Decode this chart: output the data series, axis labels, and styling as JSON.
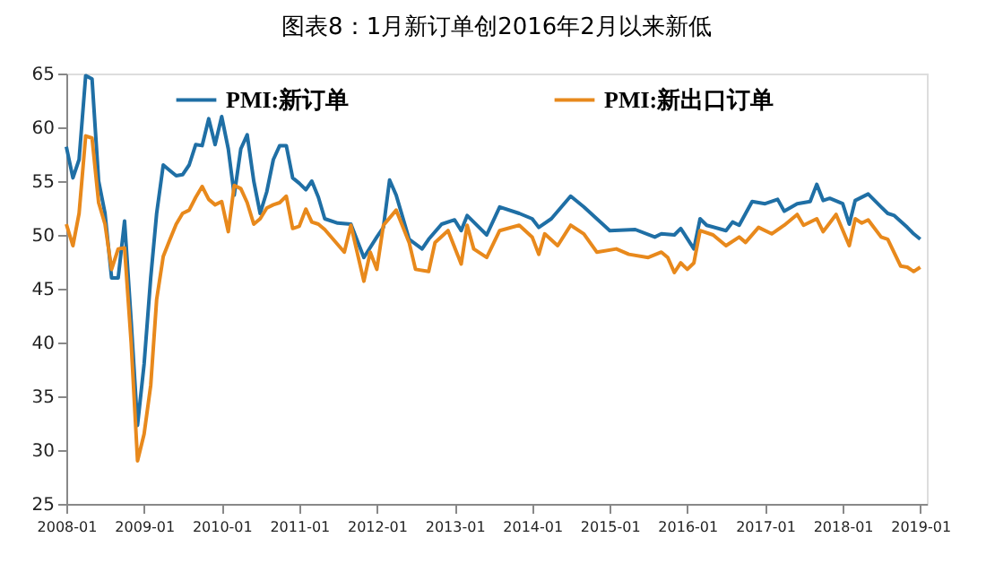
{
  "chart_data": {
    "type": "line",
    "title": "图表8：1月新订单创2016年2月以来新低",
    "xlim": [
      "2008-01",
      "2019-02"
    ],
    "ylim": [
      25,
      65
    ],
    "yticks": [
      25,
      30,
      35,
      40,
      45,
      50,
      55,
      60,
      65
    ],
    "xticks": [
      "2008-01",
      "2009-01",
      "2010-01",
      "2011-01",
      "2012-01",
      "2013-01",
      "2014-01",
      "2015-01",
      "2016-01",
      "2017-01",
      "2018-01",
      "2019-01"
    ],
    "grid": false,
    "legend": "top",
    "marker": "none",
    "line_style": "solid",
    "series": [
      {
        "name": "PMI:新订单",
        "color": "#1f6fa5",
        "x": [
          "2008-01",
          "2008-02",
          "2008-03",
          "2008-04",
          "2008-05",
          "2008-06",
          "2008-07",
          "2008-08",
          "2008-09",
          "2008-10",
          "2008-11",
          "2008-12",
          "2009-01",
          "2009-02",
          "2009-03",
          "2009-04",
          "2009-05",
          "2009-06",
          "2009-07",
          "2009-08",
          "2009-09",
          "2009-10",
          "2009-11",
          "2009-12",
          "2010-01",
          "2010-02",
          "2010-03",
          "2010-04",
          "2010-05",
          "2010-06",
          "2010-07",
          "2010-08",
          "2010-09",
          "2010-10",
          "2010-11",
          "2010-12",
          "2011-01",
          "2011-02",
          "2011-03",
          "2011-04",
          "2011-05",
          "2011-07",
          "2011-09",
          "2011-11",
          "2012-01",
          "2012-02",
          "2012-03",
          "2012-04",
          "2012-06",
          "2012-08",
          "2012-09",
          "2012-11",
          "2013-01",
          "2013-02",
          "2013-03",
          "2013-06",
          "2013-08",
          "2013-11",
          "2014-01",
          "2014-02",
          "2014-04",
          "2014-07",
          "2014-09",
          "2014-11",
          "2015-01",
          "2015-05",
          "2015-08",
          "2015-09",
          "2015-11",
          "2015-12",
          "2016-02",
          "2016-03",
          "2016-04",
          "2016-07",
          "2016-08",
          "2016-09",
          "2016-11",
          "2017-01",
          "2017-03",
          "2017-04",
          "2017-06",
          "2017-08",
          "2017-09",
          "2017-10",
          "2017-11",
          "2018-01",
          "2018-02",
          "2018-03",
          "2018-05",
          "2018-07",
          "2018-08",
          "2018-09",
          "2018-11",
          "2018-12",
          "2019-01"
        ],
        "values": [
          58.2,
          55.3,
          57,
          64.8,
          64.5,
          55,
          52,
          46,
          46,
          51.3,
          42,
          32.3,
          38,
          46,
          52,
          56.5,
          56,
          55.5,
          55.6,
          56.5,
          58.4,
          58.3,
          60.8,
          58.4,
          61,
          58,
          53.7,
          58,
          59.3,
          55,
          52,
          54,
          57,
          58.3,
          58.3,
          55.3,
          54.8,
          54.2,
          55,
          53.5,
          51.5,
          51.1,
          51,
          47.9,
          49.8,
          50.7,
          55.1,
          53.7,
          49.6,
          48.7,
          49.6,
          51,
          51.4,
          50.4,
          51.8,
          50,
          52.6,
          52,
          51.5,
          50.7,
          51.5,
          53.6,
          52.6,
          51.5,
          50.4,
          50.5,
          49.8,
          50.1,
          50,
          50.6,
          48.7,
          51.5,
          50.9,
          50.4,
          51.2,
          50.9,
          53.1,
          52.9,
          53.3,
          52.2,
          52.9,
          53.1,
          54.7,
          53.2,
          53.4,
          52.9,
          51,
          53.2,
          53.8,
          52.6,
          52,
          51.8,
          50.7,
          50.1,
          49.6
        ]
      },
      {
        "name": "PMI:新出口订单",
        "color": "#e8891c",
        "x": [
          "2008-01",
          "2008-02",
          "2008-03",
          "2008-04",
          "2008-05",
          "2008-06",
          "2008-07",
          "2008-08",
          "2008-09",
          "2008-10",
          "2008-11",
          "2008-12",
          "2009-01",
          "2009-02",
          "2009-03",
          "2009-04",
          "2009-05",
          "2009-06",
          "2009-07",
          "2009-08",
          "2009-09",
          "2009-10",
          "2009-11",
          "2009-12",
          "2010-01",
          "2010-02",
          "2010-03",
          "2010-04",
          "2010-05",
          "2010-06",
          "2010-07",
          "2010-08",
          "2010-09",
          "2010-10",
          "2010-11",
          "2010-12",
          "2011-01",
          "2011-02",
          "2011-03",
          "2011-04",
          "2011-05",
          "2011-08",
          "2011-09",
          "2011-11",
          "2011-12",
          "2012-01",
          "2012-02",
          "2012-04",
          "2012-06",
          "2012-07",
          "2012-09",
          "2012-10",
          "2012-12",
          "2013-02",
          "2013-03",
          "2013-04",
          "2013-06",
          "2013-08",
          "2013-11",
          "2014-01",
          "2014-02",
          "2014-03",
          "2014-05",
          "2014-07",
          "2014-09",
          "2014-11",
          "2015-02",
          "2015-04",
          "2015-07",
          "2015-09",
          "2015-10",
          "2015-11",
          "2015-12",
          "2016-01",
          "2016-02",
          "2016-03",
          "2016-05",
          "2016-07",
          "2016-09",
          "2016-10",
          "2016-12",
          "2017-02",
          "2017-04",
          "2017-06",
          "2017-07",
          "2017-09",
          "2017-10",
          "2017-12",
          "2018-02",
          "2018-03",
          "2018-04",
          "2018-05",
          "2018-07",
          "2018-08",
          "2018-10",
          "2018-11",
          "2018-12",
          "2019-01"
        ],
        "values": [
          51,
          49,
          52,
          59.2,
          59,
          53,
          51,
          46.8,
          48.7,
          48.8,
          40,
          29,
          31.5,
          36,
          44,
          48,
          49.5,
          51,
          52,
          52.3,
          53.5,
          54.5,
          53.3,
          52.8,
          53.1,
          50.3,
          54.6,
          54.3,
          53,
          51,
          51.5,
          52.5,
          52.8,
          53,
          53.6,
          50.6,
          50.8,
          52.4,
          51.2,
          51,
          50.5,
          48.4,
          50.9,
          45.7,
          48.4,
          46.8,
          50.9,
          52.3,
          49.3,
          46.8,
          46.6,
          49.3,
          50.4,
          47.3,
          50.9,
          48.7,
          47.9,
          50.4,
          50.9,
          49.8,
          48.2,
          50.1,
          49,
          50.9,
          50.1,
          48.4,
          48.7,
          48.2,
          47.9,
          48.4,
          47.9,
          46.5,
          47.4,
          46.8,
          47.4,
          50.4,
          50,
          49,
          49.8,
          49.3,
          50.7,
          50.1,
          50.9,
          51.9,
          50.9,
          51.5,
          50.3,
          51.9,
          49,
          51.5,
          51.1,
          51.4,
          49.8,
          49.6,
          47.1,
          47,
          46.6,
          47
        ]
      }
    ]
  }
}
